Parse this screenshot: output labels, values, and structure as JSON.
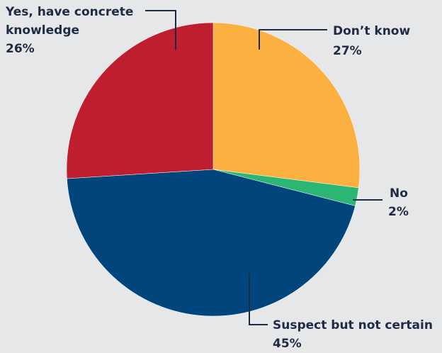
{
  "chart_data": {
    "type": "pie",
    "slices": [
      {
        "label": "Don’t know",
        "value": 27,
        "value_label": "27%",
        "color": "#fbb040"
      },
      {
        "label": "No",
        "value": 2,
        "value_label": "2%",
        "color": "#2bb673"
      },
      {
        "label": "Suspect but not certain",
        "value": 45,
        "value_label": "45%",
        "color": "#00457c"
      },
      {
        "label": "Yes, have concrete",
        "label_line2": "knowledge",
        "value": 26,
        "value_label": "26%",
        "color": "#be1e2d"
      }
    ],
    "start_angle_deg": 0,
    "direction": "clockwise",
    "legend": "none",
    "background": "#e6e7e8"
  }
}
